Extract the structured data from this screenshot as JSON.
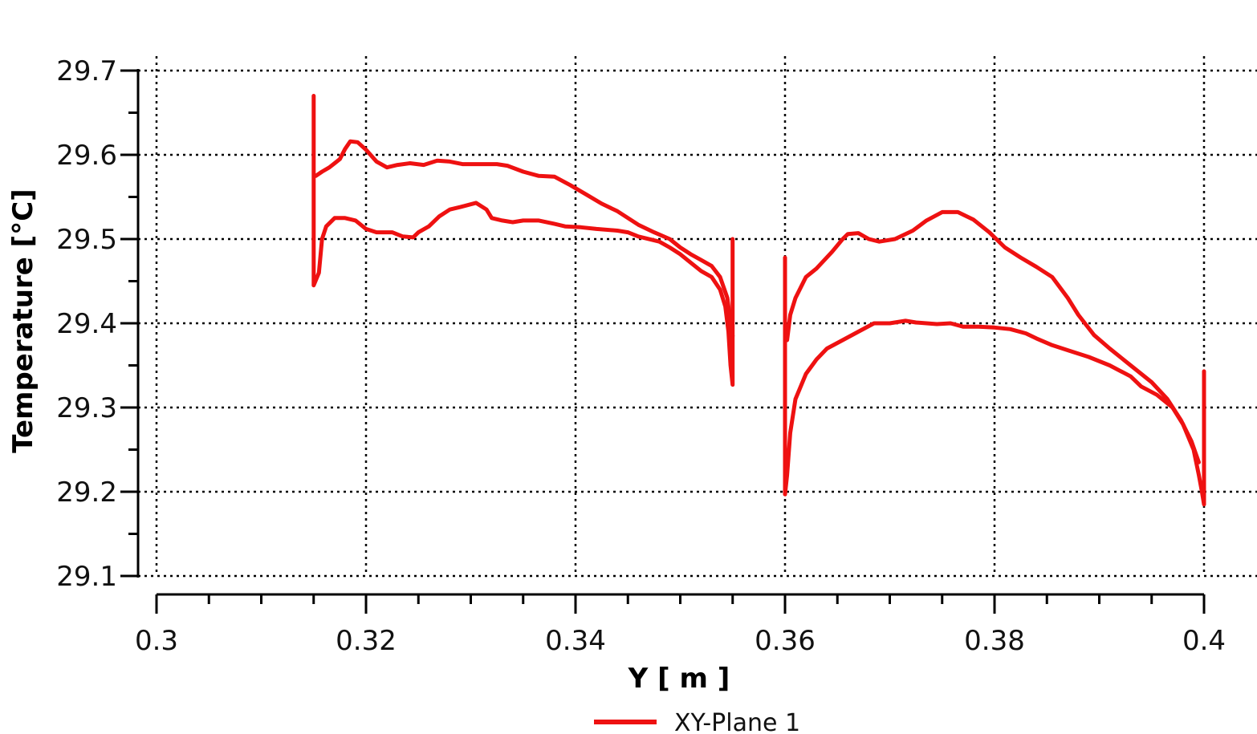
{
  "chart_data": {
    "type": "line",
    "title": "",
    "xlabel": "Y [ m ]",
    "ylabel": "Temperature [°C]",
    "xlim": [
      0.3,
      0.4
    ],
    "ylim": [
      29.1,
      29.7
    ],
    "x_ticks": [
      "0.3",
      "0.32",
      "0.34",
      "0.36",
      "0.38",
      "0.4"
    ],
    "y_ticks": [
      "29.7",
      "29.6",
      "29.5",
      "29.4",
      "29.3",
      "29.2",
      "29.1"
    ],
    "grid": true,
    "legend": {
      "position": "bottom-center",
      "entries": [
        "XY-Plane 1"
      ]
    },
    "series": [
      {
        "name": "XY-Plane 1",
        "color": "#ee1111",
        "segments": [
          [
            [
              0.315,
              29.67
            ],
            [
              0.315,
              29.445
            ],
            [
              0.3155,
              29.46
            ],
            [
              0.3158,
              29.5
            ],
            [
              0.3162,
              29.515
            ],
            [
              0.317,
              29.525
            ],
            [
              0.318,
              29.525
            ],
            [
              0.319,
              29.522
            ],
            [
              0.32,
              29.512
            ],
            [
              0.321,
              29.508
            ],
            [
              0.3225,
              29.508
            ],
            [
              0.3235,
              29.503
            ],
            [
              0.3245,
              29.502
            ],
            [
              0.325,
              29.508
            ],
            [
              0.326,
              29.515
            ],
            [
              0.327,
              29.527
            ],
            [
              0.328,
              29.535
            ],
            [
              0.329,
              29.538
            ],
            [
              0.3305,
              29.543
            ],
            [
              0.3315,
              29.535
            ],
            [
              0.332,
              29.525
            ],
            [
              0.333,
              29.522
            ],
            [
              0.334,
              29.52
            ],
            [
              0.335,
              29.522
            ],
            [
              0.3365,
              29.522
            ],
            [
              0.338,
              29.518
            ],
            [
              0.339,
              29.515
            ],
            [
              0.3405,
              29.514
            ],
            [
              0.342,
              29.512
            ],
            [
              0.344,
              29.51
            ],
            [
              0.345,
              29.508
            ],
            [
              0.346,
              29.503
            ],
            [
              0.348,
              29.497
            ],
            [
              0.349,
              29.49
            ],
            [
              0.35,
              29.482
            ],
            [
              0.351,
              29.472
            ],
            [
              0.352,
              29.462
            ],
            [
              0.353,
              29.455
            ],
            [
              0.3538,
              29.44
            ],
            [
              0.3543,
              29.42
            ],
            [
              0.3546,
              29.39
            ],
            [
              0.3548,
              29.35
            ],
            [
              0.355,
              29.327
            ],
            [
              0.355,
              29.5
            ]
          ],
          [
            [
              0.3152,
              29.575
            ],
            [
              0.3158,
              29.58
            ],
            [
              0.3165,
              29.585
            ],
            [
              0.317,
              29.59
            ],
            [
              0.3175,
              29.595
            ],
            [
              0.318,
              29.607
            ],
            [
              0.3185,
              29.616
            ],
            [
              0.3192,
              29.615
            ],
            [
              0.32,
              29.606
            ],
            [
              0.321,
              29.592
            ],
            [
              0.322,
              29.585
            ],
            [
              0.323,
              29.588
            ],
            [
              0.3242,
              29.59
            ],
            [
              0.3255,
              29.588
            ],
            [
              0.3268,
              29.593
            ],
            [
              0.328,
              29.592
            ],
            [
              0.3292,
              29.589
            ],
            [
              0.331,
              29.589
            ],
            [
              0.3325,
              29.589
            ],
            [
              0.3335,
              29.587
            ],
            [
              0.335,
              29.58
            ],
            [
              0.3365,
              29.575
            ],
            [
              0.338,
              29.574
            ],
            [
              0.3395,
              29.564
            ],
            [
              0.341,
              29.553
            ],
            [
              0.3425,
              29.542
            ],
            [
              0.344,
              29.533
            ],
            [
              0.346,
              29.517
            ],
            [
              0.3475,
              29.508
            ],
            [
              0.349,
              29.5
            ],
            [
              0.35,
              29.49
            ],
            [
              0.351,
              29.482
            ],
            [
              0.352,
              29.475
            ],
            [
              0.353,
              29.468
            ],
            [
              0.3538,
              29.455
            ],
            [
              0.3545,
              29.43
            ],
            [
              0.3548,
              29.4
            ],
            [
              0.355,
              29.385
            ]
          ],
          [
            [
              0.36,
              29.478
            ],
            [
              0.36,
              29.197
            ],
            [
              0.3602,
              29.22
            ],
            [
              0.3605,
              29.27
            ],
            [
              0.361,
              29.31
            ],
            [
              0.362,
              29.34
            ],
            [
              0.363,
              29.357
            ],
            [
              0.364,
              29.37
            ],
            [
              0.3655,
              29.38
            ],
            [
              0.367,
              29.39
            ],
            [
              0.3685,
              29.4
            ],
            [
              0.37,
              29.4
            ],
            [
              0.3715,
              29.403
            ],
            [
              0.3725,
              29.401
            ],
            [
              0.3745,
              29.399
            ],
            [
              0.3758,
              29.4
            ],
            [
              0.377,
              29.396
            ],
            [
              0.3785,
              29.396
            ],
            [
              0.38,
              29.395
            ],
            [
              0.3815,
              29.393
            ],
            [
              0.383,
              29.388
            ],
            [
              0.384,
              29.382
            ],
            [
              0.3855,
              29.374
            ],
            [
              0.387,
              29.368
            ],
            [
              0.389,
              29.36
            ],
            [
              0.391,
              29.35
            ],
            [
              0.393,
              29.337
            ],
            [
              0.394,
              29.325
            ],
            [
              0.3955,
              29.315
            ],
            [
              0.397,
              29.3
            ],
            [
              0.398,
              29.28
            ],
            [
              0.399,
              29.25
            ],
            [
              0.3995,
              29.22
            ],
            [
              0.3998,
              29.2
            ],
            [
              0.4,
              29.185
            ],
            [
              0.4,
              29.343
            ]
          ],
          [
            [
              0.3602,
              29.38
            ],
            [
              0.3605,
              29.41
            ],
            [
              0.361,
              29.43
            ],
            [
              0.362,
              29.455
            ],
            [
              0.363,
              29.465
            ],
            [
              0.3645,
              29.485
            ],
            [
              0.3655,
              29.5
            ],
            [
              0.366,
              29.506
            ],
            [
              0.367,
              29.507
            ],
            [
              0.368,
              29.5
            ],
            [
              0.369,
              29.497
            ],
            [
              0.3705,
              29.5
            ],
            [
              0.3722,
              29.51
            ],
            [
              0.3735,
              29.522
            ],
            [
              0.375,
              29.532
            ],
            [
              0.3765,
              29.532
            ],
            [
              0.378,
              29.523
            ],
            [
              0.3795,
              29.508
            ],
            [
              0.381,
              29.49
            ],
            [
              0.3825,
              29.478
            ],
            [
              0.384,
              29.467
            ],
            [
              0.3855,
              29.455
            ],
            [
              0.387,
              29.43
            ],
            [
              0.388,
              29.41
            ],
            [
              0.3895,
              29.386
            ],
            [
              0.391,
              29.37
            ],
            [
              0.393,
              29.35
            ],
            [
              0.395,
              29.33
            ],
            [
              0.3965,
              29.31
            ],
            [
              0.3978,
              29.285
            ],
            [
              0.3988,
              29.26
            ],
            [
              0.3995,
              29.235
            ]
          ]
        ]
      }
    ]
  }
}
